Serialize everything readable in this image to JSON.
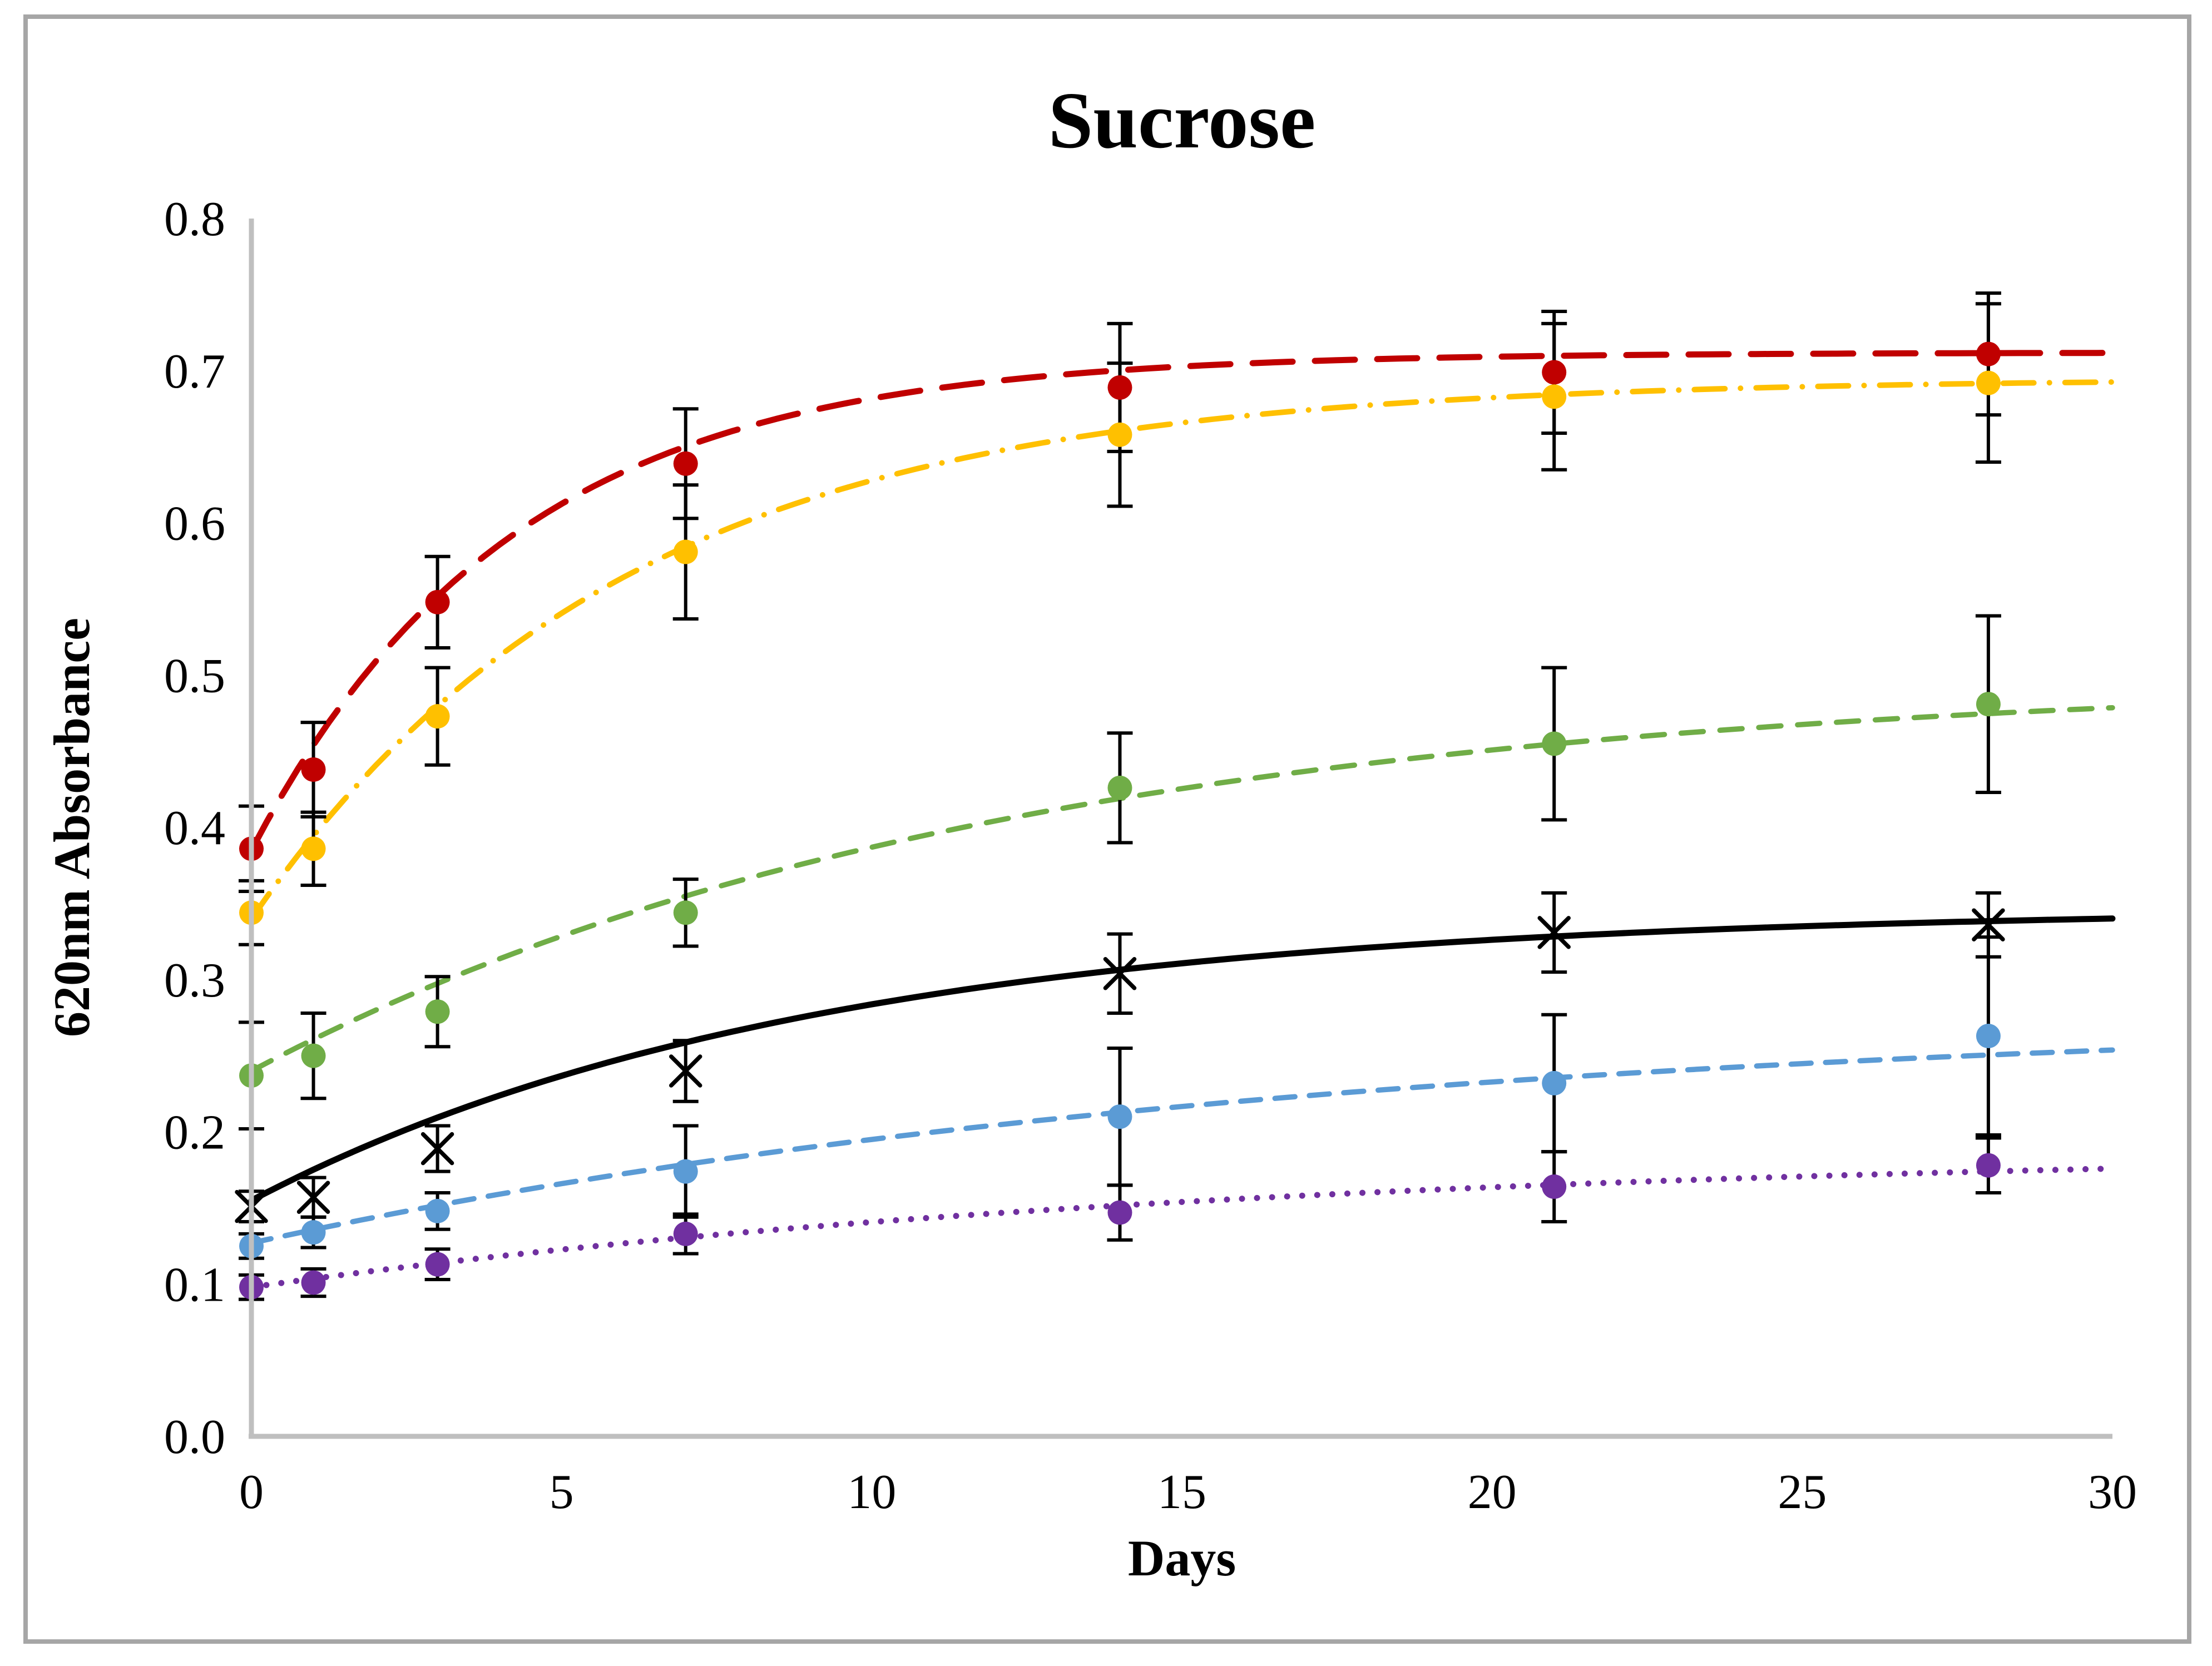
{
  "figure": {
    "background_color": "#FFFFFF",
    "border_color": "#A6A6A6",
    "axis_color": "#BFBFBF",
    "error_bar_color": "#000000"
  },
  "chart_data": {
    "type": "line",
    "title": "Sucrose",
    "xlabel": "Days",
    "ylabel": "620nm Absorbance",
    "xlim": [
      0,
      30
    ],
    "ylim": [
      0.0,
      0.8
    ],
    "x_ticks": [
      "0",
      "5",
      "10",
      "15",
      "20",
      "25",
      "30"
    ],
    "x_tick_values": [
      0,
      5,
      10,
      15,
      20,
      25,
      30
    ],
    "y_ticks": [
      "0.0",
      "0.1",
      "0.2",
      "0.3",
      "0.4",
      "0.5",
      "0.6",
      "0.7",
      "0.8"
    ],
    "y_tick_values": [
      0.0,
      0.1,
      0.2,
      0.3,
      0.4,
      0.5,
      0.6,
      0.7,
      0.8
    ],
    "grid": false,
    "legend_position": "none",
    "x": [
      0,
      1,
      3,
      7,
      14,
      21,
      28
    ],
    "series": [
      {
        "name": "red-long-dash-series",
        "color": "#C00000",
        "marker": "circle",
        "line_style": "long-dash",
        "dash_array": [
          72,
          40
        ],
        "line_width": 11,
        "values": [
          0.386,
          0.438,
          0.548,
          0.639,
          0.689,
          0.699,
          0.711
        ],
        "errors": [
          0.028,
          0.031,
          0.03,
          0.036,
          0.042,
          0.04,
          0.04
        ],
        "trend": {
          "plateau": 0.712,
          "start": 0.385,
          "tau": 4.2
        }
      },
      {
        "name": "gold-dash-dot-series",
        "color": "#FFC000",
        "marker": "circle",
        "line_style": "dash-dot",
        "dash_array": [
          55,
          28,
          0.1,
          28
        ],
        "line_width": 10,
        "values": [
          0.344,
          0.386,
          0.473,
          0.581,
          0.658,
          0.683,
          0.692
        ],
        "errors": [
          0.021,
          0.024,
          0.032,
          0.044,
          0.047,
          0.048,
          0.052
        ],
        "trend": {
          "plateau": 0.695,
          "start": 0.34,
          "tau": 6.0
        }
      },
      {
        "name": "green-dashed-series",
        "color": "#70AD47",
        "marker": "circle",
        "line_style": "dash",
        "dash_array": [
          40,
          30
        ],
        "line_width": 9.5,
        "values": [
          0.237,
          0.25,
          0.279,
          0.344,
          0.426,
          0.455,
          0.481
        ],
        "errors": [
          0.035,
          0.028,
          0.023,
          0.022,
          0.036,
          0.05,
          0.058
        ],
        "trend": {
          "plateau": 0.5,
          "start": 0.24,
          "tau": 12.0
        }
      },
      {
        "name": "black-solid-series",
        "color": "#000000",
        "marker": "x",
        "line_style": "solid",
        "dash_array": null,
        "line_width": 11,
        "values": [
          0.151,
          0.157,
          0.189,
          0.24,
          0.304,
          0.331,
          0.336
        ],
        "errors": [
          0.01,
          0.013,
          0.015,
          0.02,
          0.026,
          0.026,
          0.021
        ],
        "trend": {
          "plateau": 0.347,
          "start": 0.155,
          "tau": 9.0
        }
      },
      {
        "name": "blue-dashed-series",
        "color": "#5B9BD5",
        "marker": "circle",
        "line_style": "dash",
        "dash_array": [
          36,
          26
        ],
        "line_width": 9.5,
        "values": [
          0.125,
          0.134,
          0.148,
          0.174,
          0.21,
          0.232,
          0.263
        ],
        "errors": [
          0.008,
          0.01,
          0.012,
          0.03,
          0.045,
          0.045,
          0.065
        ],
        "trend": {
          "plateau": 0.28,
          "start": 0.127,
          "tau": 17.0
        }
      },
      {
        "name": "purple-dotted-series",
        "color": "#7030A0",
        "marker": "circle",
        "line_style": "dot",
        "dash_array": [
          0.1,
          27
        ],
        "line_width": 11,
        "values": [
          0.098,
          0.101,
          0.113,
          0.133,
          0.147,
          0.164,
          0.178
        ],
        "errors": [
          0.008,
          0.009,
          0.01,
          0.013,
          0.018,
          0.023,
          0.018
        ],
        "trend": {
          "plateau": 0.19,
          "start": 0.098,
          "tau": 16.0
        }
      }
    ]
  }
}
